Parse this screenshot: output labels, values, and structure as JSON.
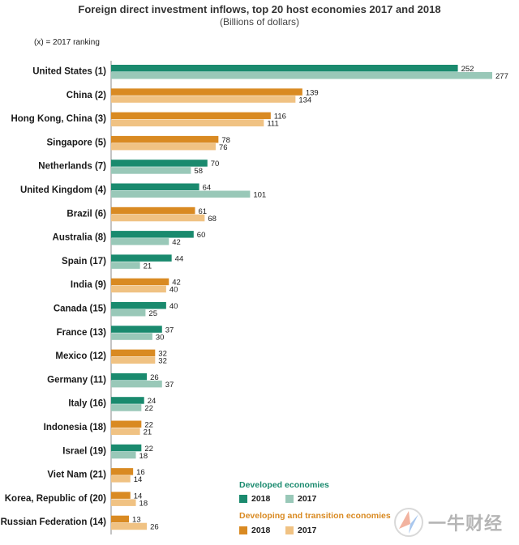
{
  "chart_data": {
    "type": "bar",
    "orientation": "horizontal",
    "title": "Foreign direct investment inflows, top 20 host economies 2017 and 2018",
    "subtitle": "(Billions of dollars)",
    "note": "(x) = 2017 ranking",
    "categories": [
      "United States (1)",
      "China (2)",
      "Hong Kong, China (3)",
      "Singapore (5)",
      "Netherlands (7)",
      "United Kingdom (4)",
      "Brazil (6)",
      "Australia (8)",
      "Spain (17)",
      "India (9)",
      "Canada (15)",
      "France (13)",
      "Mexico (12)",
      "Germany (11)",
      "Italy (16)",
      "Indonesia (18)",
      "Israel (19)",
      "Viet Nam (21)",
      "Korea, Republic of (20)",
      "Russian Federation (14)"
    ],
    "group": [
      "developed",
      "developing",
      "developing",
      "developing",
      "developed",
      "developed",
      "developing",
      "developed",
      "developed",
      "developing",
      "developed",
      "developed",
      "developing",
      "developed",
      "developed",
      "developing",
      "developed",
      "developing",
      "developing",
      "developing"
    ],
    "series": [
      {
        "name": "2018",
        "values": [
          252,
          139,
          116,
          78,
          70,
          64,
          61,
          60,
          44,
          42,
          40,
          37,
          32,
          26,
          24,
          22,
          22,
          16,
          14,
          13
        ]
      },
      {
        "name": "2017",
        "values": [
          277,
          134,
          111,
          76,
          58,
          101,
          68,
          42,
          21,
          40,
          25,
          30,
          32,
          37,
          22,
          21,
          18,
          14,
          18,
          26
        ]
      }
    ],
    "xlim": [
      0,
      277
    ],
    "grid": false,
    "legend_position": "bottom-right",
    "colors": {
      "developed_2018": "#1a8a6e",
      "developed_2017": "#99c8b8",
      "developing_2018": "#d98a22",
      "developing_2017": "#f0c283"
    }
  },
  "legend": {
    "developed_heading": "Developed economies",
    "developing_heading": "Developing and transition economies",
    "label_2018": "2018",
    "label_2017": "2017",
    "developed_color": "#1a8a6e",
    "developing_color": "#d98a22"
  },
  "watermark": {
    "text": "一牛财经"
  }
}
